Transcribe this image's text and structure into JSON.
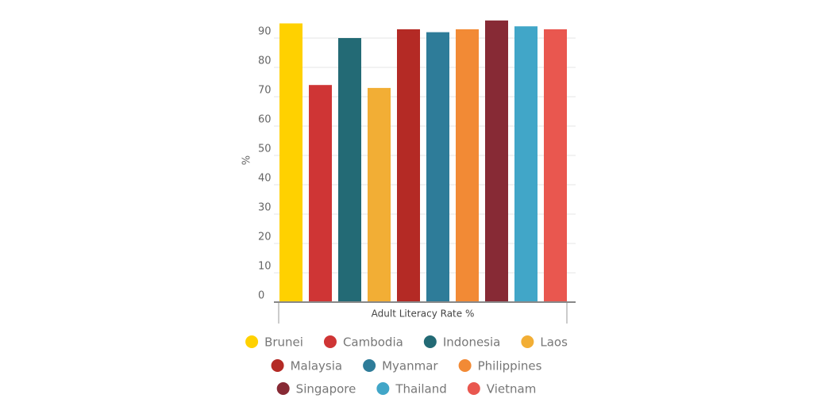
{
  "chart_data": {
    "type": "bar",
    "y_label": "%",
    "categories": [
      "Adult Literacy Rate %"
    ],
    "series": [
      {
        "name": "Brunei",
        "color": "#ffd100",
        "values": [
          95
        ]
      },
      {
        "name": "Cambodia",
        "color": "#cf3535",
        "values": [
          74
        ]
      },
      {
        "name": "Indonesia",
        "color": "#236a75",
        "values": [
          90
        ]
      },
      {
        "name": "Laos",
        "color": "#f2ae35",
        "values": [
          73
        ]
      },
      {
        "name": "Malaysia",
        "color": "#b42a25",
        "values": [
          93
        ]
      },
      {
        "name": "Myanmar",
        "color": "#2e7c99",
        "values": [
          92
        ]
      },
      {
        "name": "Philippines",
        "color": "#f28a35",
        "values": [
          93
        ]
      },
      {
        "name": "Singapore",
        "color": "#872a35",
        "values": [
          96
        ]
      },
      {
        "name": "Thailand",
        "color": "#41a6c8",
        "values": [
          94
        ]
      },
      {
        "name": "Vietnam",
        "color": "#e9574f",
        "values": [
          93
        ]
      }
    ],
    "ylim": [
      0,
      100
    ],
    "yticks": [
      0,
      10,
      20,
      30,
      40,
      50,
      60,
      70,
      80,
      90
    ],
    "grid": true,
    "legend": "bottom"
  }
}
